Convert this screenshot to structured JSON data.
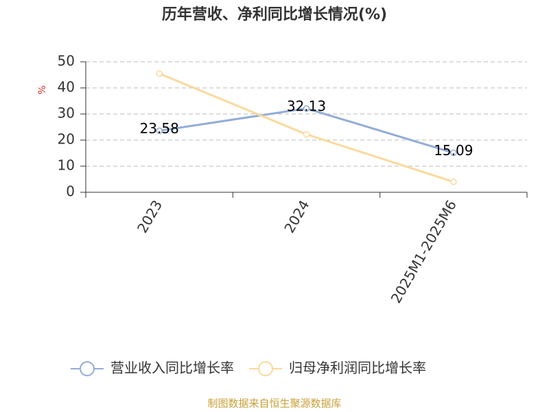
{
  "chart_data": {
    "type": "line",
    "title": "历年营收、净利同比增长情况(%)",
    "y_label": "%",
    "categories": [
      "2023",
      "2024",
      "2025M1-2025M6"
    ],
    "series": [
      {
        "name": "营业收入同比增长率",
        "color": "#91acd8",
        "values": [
          23.58,
          32.13,
          15.09
        ],
        "show_labels": true
      },
      {
        "name": "归母净利润同比增长率",
        "color": "#fad99c",
        "values": [
          45.5,
          22.2,
          4.0
        ],
        "show_labels": false
      }
    ],
    "ylim": [
      0,
      50
    ],
    "yticks": [
      0,
      10,
      20,
      30,
      40,
      50
    ],
    "grid": true,
    "legend": "bottom",
    "source": "制图数据来自恒生聚源数据库"
  }
}
